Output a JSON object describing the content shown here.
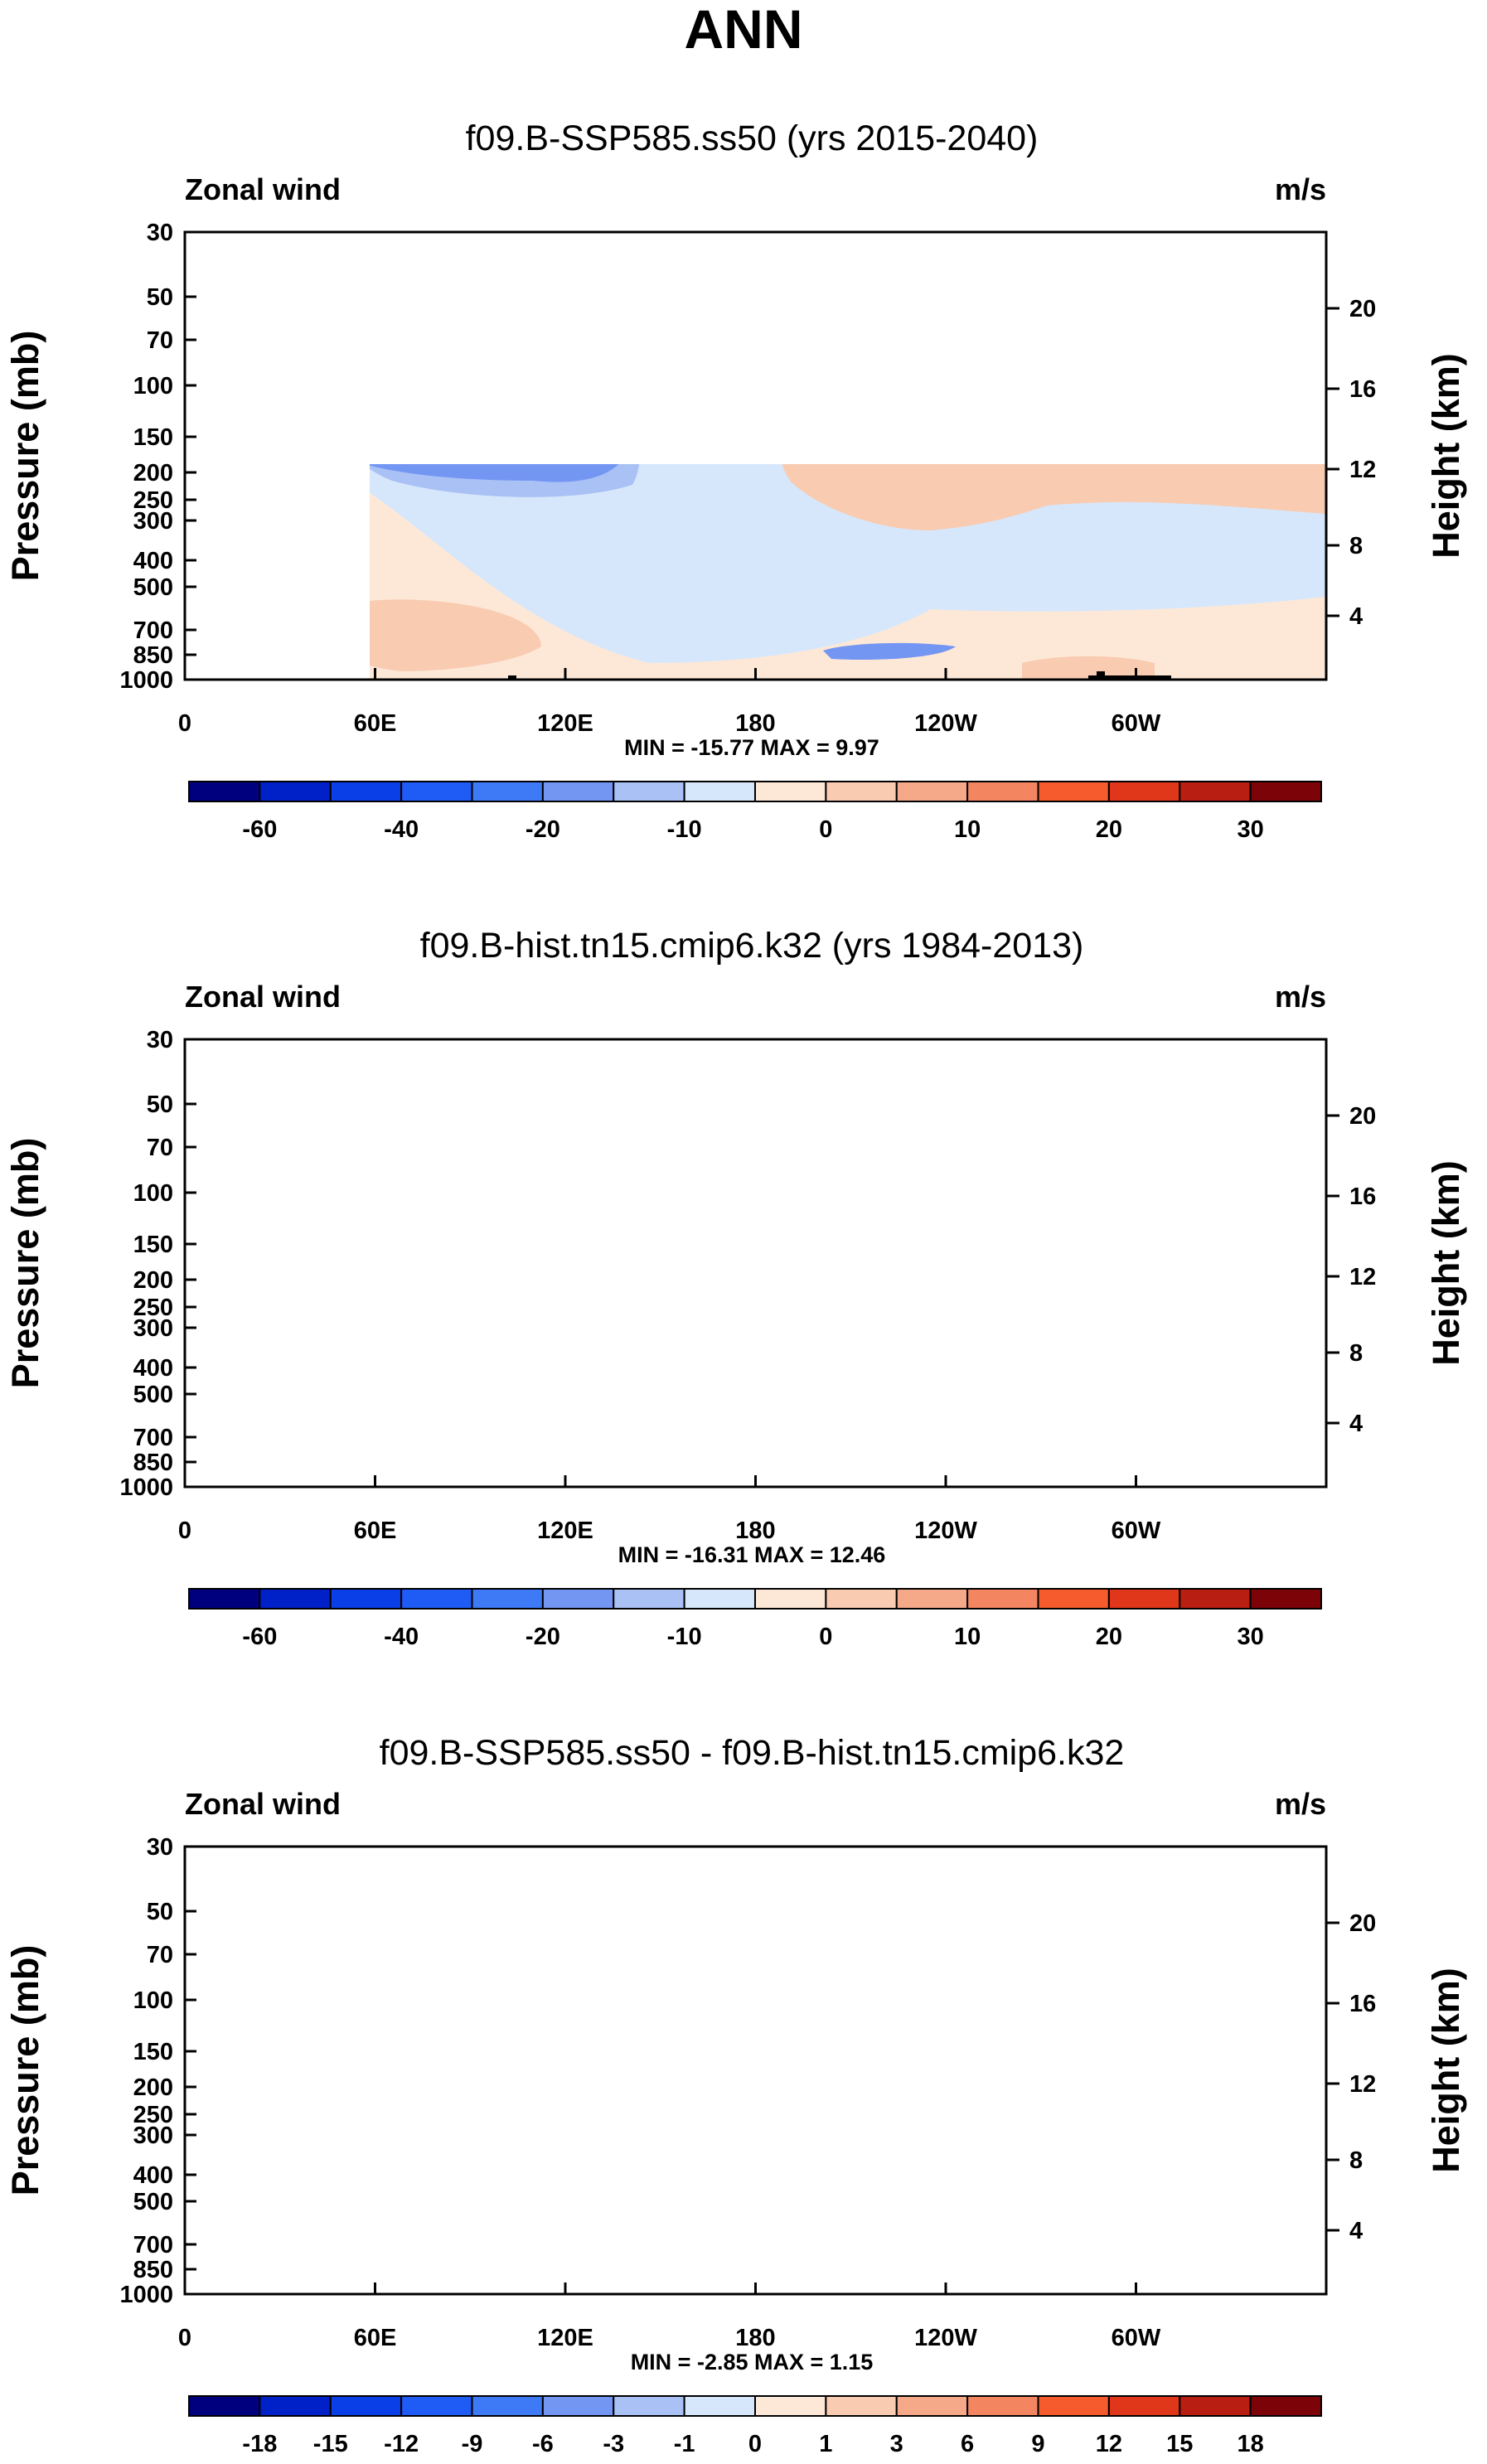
{
  "page_title": "ANN",
  "chart_data": [
    {
      "type": "heatmap",
      "title": "f09.B-SSP585.ss50 (yrs 2015-2040)",
      "left_label": "Zonal wind",
      "right_label": "m/s",
      "ylabel": "Pressure (mb)",
      "ylabel_right": "Height (km)",
      "x_ticks": [
        "0",
        "60E",
        "120E",
        "180",
        "120W",
        "60W"
      ],
      "y_ticks": [
        "30",
        "50",
        "70",
        "100",
        "150",
        "200",
        "250",
        "300",
        "400",
        "500",
        "700",
        "850",
        "1000"
      ],
      "y_right_ticks": [
        "20",
        "16",
        "12",
        "8",
        "4"
      ],
      "stats": "MIN = -15.77  MAX =  9.97",
      "colorbar_labels": [
        "-60",
        "-40",
        "-20",
        "-10",
        "0",
        "10",
        "20",
        "30"
      ]
    },
    {
      "type": "heatmap",
      "title": "f09.B-hist.tn15.cmip6.k32 (yrs 1984-2013)",
      "left_label": "Zonal wind",
      "right_label": "m/s",
      "ylabel": "Pressure (mb)",
      "ylabel_right": "Height (km)",
      "x_ticks": [
        "0",
        "60E",
        "120E",
        "180",
        "120W",
        "60W"
      ],
      "y_ticks": [
        "30",
        "50",
        "70",
        "100",
        "150",
        "200",
        "250",
        "300",
        "400",
        "500",
        "700",
        "850",
        "1000"
      ],
      "y_right_ticks": [
        "20",
        "16",
        "12",
        "8",
        "4"
      ],
      "stats": "MIN = -16.31  MAX = 12.46",
      "colorbar_labels": [
        "-60",
        "-40",
        "-20",
        "-10",
        "0",
        "10",
        "20",
        "30"
      ]
    },
    {
      "type": "heatmap",
      "title": "f09.B-SSP585.ss50 - f09.B-hist.tn15.cmip6.k32",
      "left_label": "Zonal wind",
      "right_label": "m/s",
      "ylabel": "Pressure (mb)",
      "ylabel_right": "Height (km)",
      "x_ticks": [
        "0",
        "60E",
        "120E",
        "180",
        "120W",
        "60W"
      ],
      "y_ticks": [
        "30",
        "50",
        "70",
        "100",
        "150",
        "200",
        "250",
        "300",
        "400",
        "500",
        "700",
        "850",
        "1000"
      ],
      "y_right_ticks": [
        "20",
        "16",
        "12",
        "8",
        "4"
      ],
      "stats": "MIN = -2.85  MAX =  1.15",
      "colorbar_labels": [
        "-18",
        "-15",
        "-12",
        "-9",
        "-6",
        "-3",
        "-1",
        "0",
        "1",
        "3",
        "6",
        "9",
        "12",
        "15",
        "18"
      ]
    }
  ],
  "palette": [
    "#00007f",
    "#0020c8",
    "#0a3ee6",
    "#1e5cf5",
    "#3e7af5",
    "#7496f3",
    "#a9c1f5",
    "#d7e7fb",
    "#fde8d7",
    "#f9cbb1",
    "#f5a988",
    "#f38560",
    "#f55b2c",
    "#e0361a",
    "#b81e12",
    "#7c0408"
  ]
}
